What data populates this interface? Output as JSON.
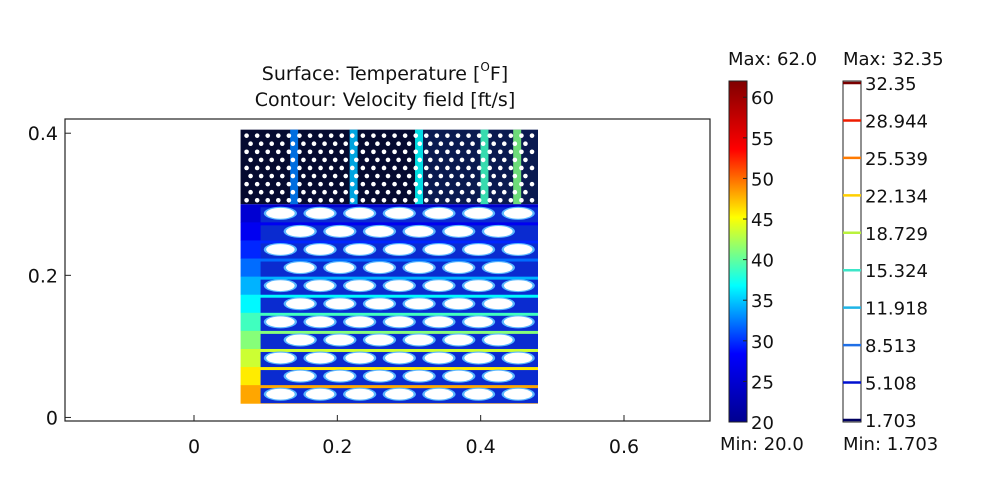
{
  "chart_data": {
    "type": "heatmap",
    "title": {
      "surface_prefix": "Surface: Temperature [",
      "surface_sup": "O",
      "surface_suffix": "F]",
      "contour": "Contour: Velocity field [ft/s]"
    },
    "x_ticks": [
      "0",
      "0.2",
      "0.4",
      "0.6"
    ],
    "x_tick_values": [
      0,
      0.2,
      0.4,
      0.6
    ],
    "y_ticks": [
      "0",
      "0.2",
      "0.4"
    ],
    "y_tick_values": [
      0,
      0.2,
      0.4
    ],
    "xlim": [
      -0.18,
      0.72
    ],
    "ylim": [
      -0.005,
      0.42
    ],
    "domain": {
      "x_range": [
        0.065,
        0.48
      ],
      "y_range": [
        0.02,
        0.405
      ],
      "dense_region_y": [
        0.3,
        0.405
      ],
      "hex_rows": 11,
      "hex_cols": 7
    },
    "surface_colorbar": {
      "quantity": "Temperature",
      "max_label": "Max: 62.0",
      "min_label": "Min: 20.0",
      "ticks": [
        "60",
        "55",
        "50",
        "45",
        "40",
        "35",
        "30",
        "25",
        "20"
      ],
      "tick_values": [
        60,
        55,
        50,
        45,
        40,
        35,
        30,
        25,
        20
      ],
      "range": [
        20,
        62
      ],
      "colormap": [
        "#00008f",
        "#0000ff",
        "#00ffff",
        "#ffff00",
        "#ff0000",
        "#800000"
      ]
    },
    "contour_legend": {
      "quantity": "Velocity field",
      "max_label": "Max: 32.35",
      "min_label": "Min: 1.703",
      "levels": [
        "32.35",
        "28.944",
        "25.539",
        "22.134",
        "18.729",
        "15.324",
        "11.918",
        "8.513",
        "5.108",
        "1.703"
      ],
      "level_colors": [
        "#7a0000",
        "#ee1c00",
        "#ff7a00",
        "#ffcf00",
        "#b9f23c",
        "#3ce6c8",
        "#1fb4e6",
        "#1f6fe6",
        "#0010d0",
        "#000060"
      ]
    }
  }
}
